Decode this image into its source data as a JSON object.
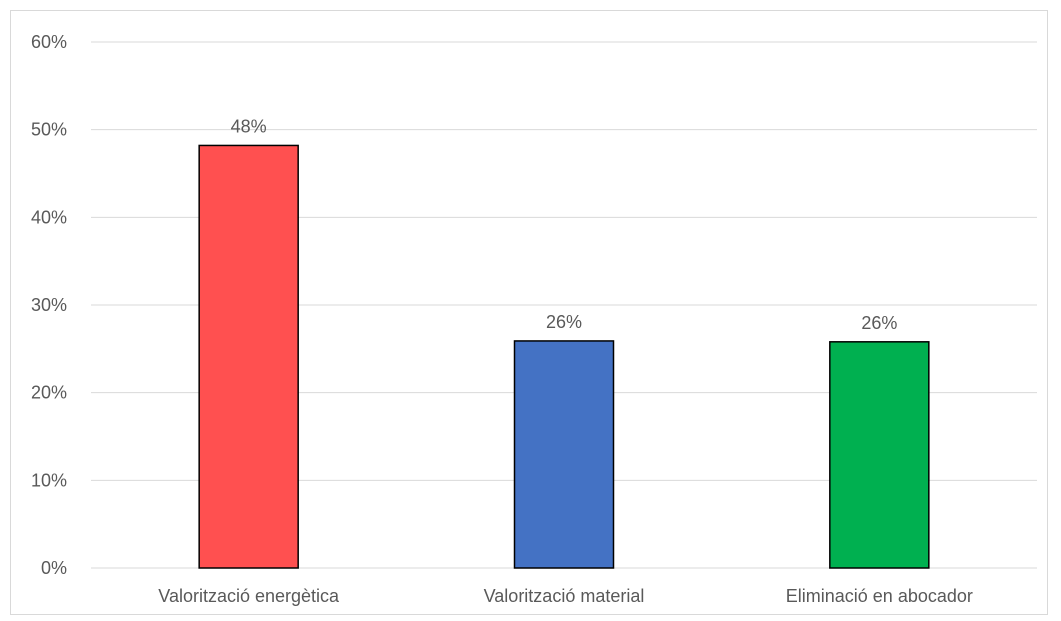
{
  "chart_data": {
    "type": "bar",
    "categories": [
      "Valorització energètica",
      "Valorització material",
      "Eliminació en abocador"
    ],
    "values": [
      48.2,
      25.9,
      25.8
    ],
    "data_labels": [
      "48%",
      "26%",
      "26%"
    ],
    "colors": [
      "#ff5050",
      "#4472c4",
      "#00b050"
    ],
    "bar_outline_color": "#000000",
    "ylim": [
      0,
      60
    ],
    "yticks": [
      0,
      10,
      20,
      30,
      40,
      50,
      60
    ],
    "ytick_labels": [
      "0%",
      "10%",
      "20%",
      "30%",
      "40%",
      "50%",
      "60%"
    ],
    "grid": true,
    "legend": "none"
  }
}
